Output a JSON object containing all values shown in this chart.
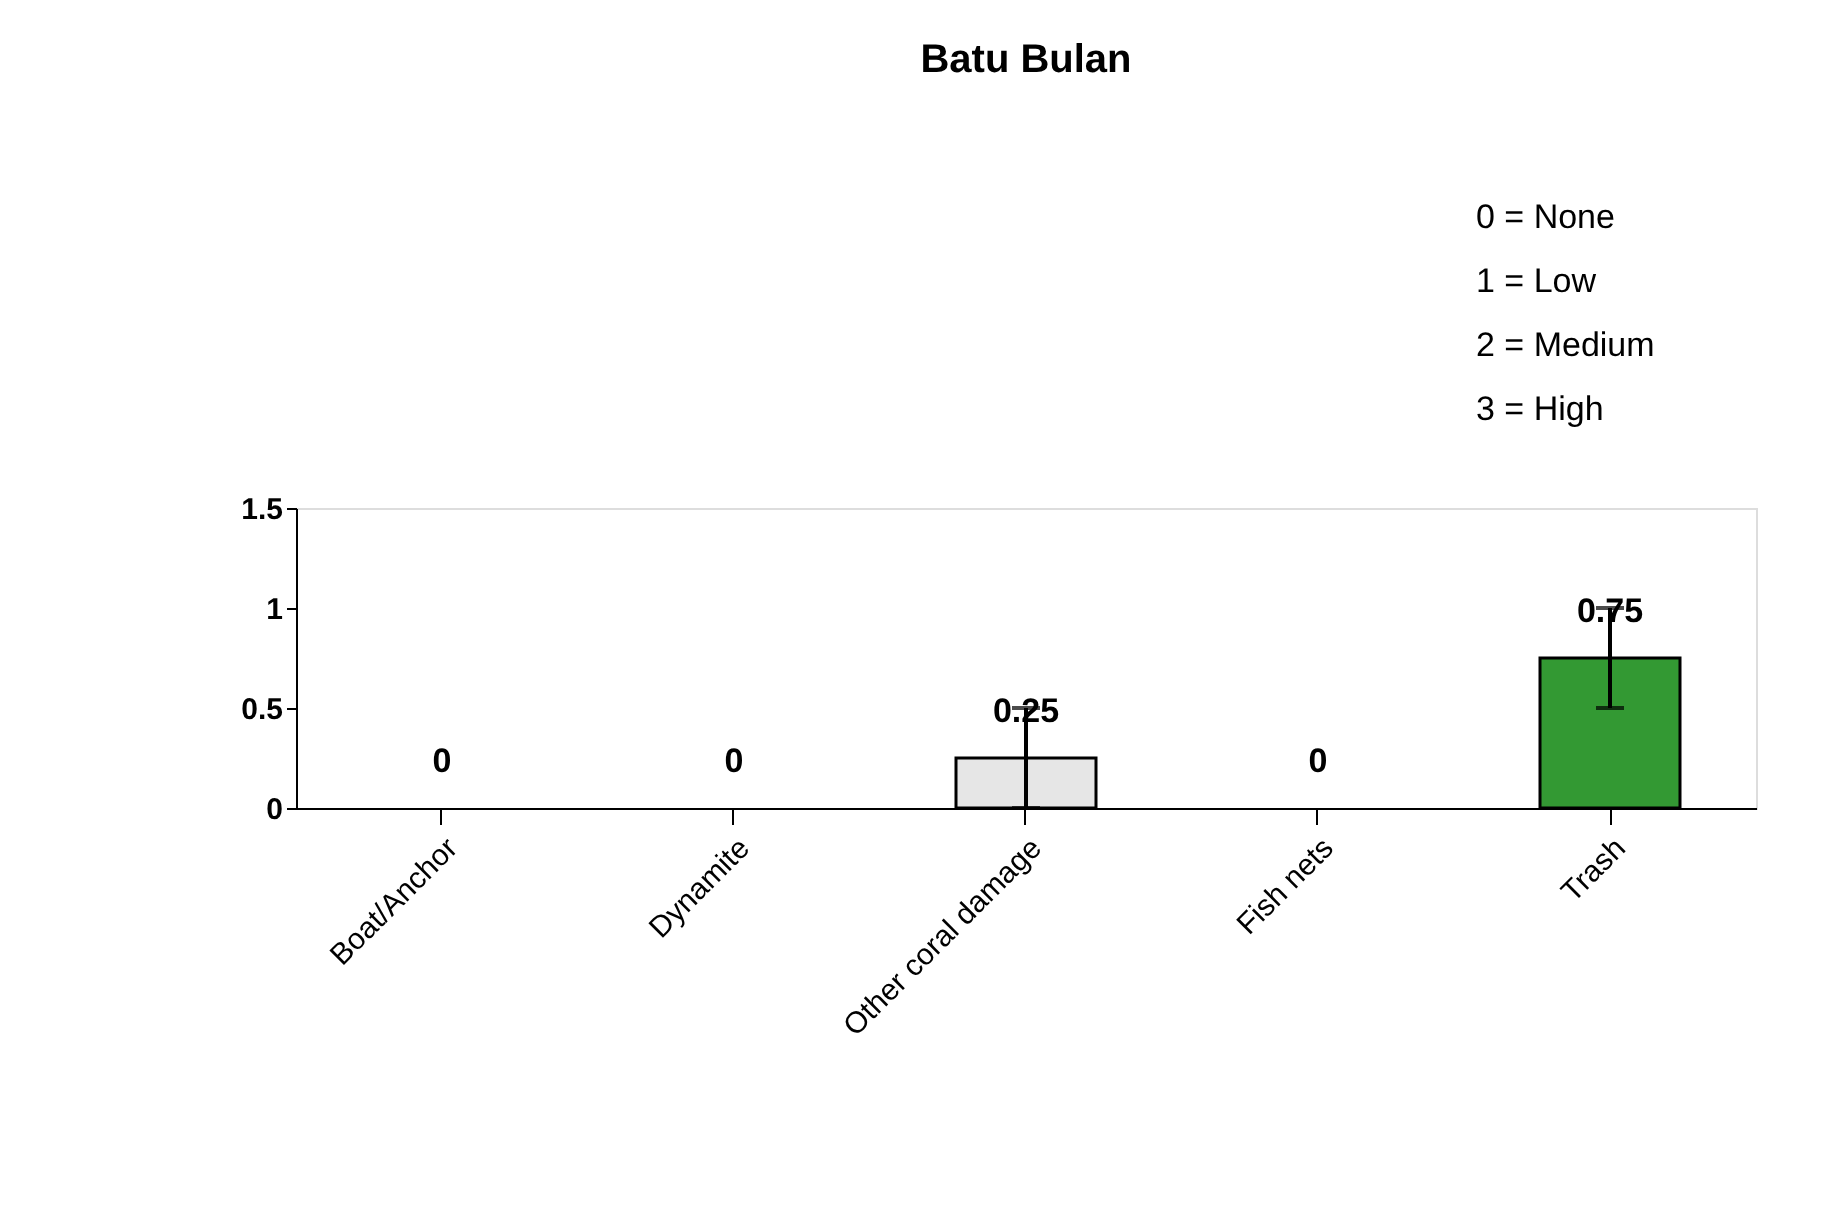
{
  "chart_data": {
    "type": "bar",
    "title": "Batu Bulan",
    "categories": [
      "Boat/Anchor",
      "Dynamite",
      "Other coral damage",
      "Fish nets",
      "Trash"
    ],
    "values": [
      0,
      0,
      0.25,
      0,
      0.75
    ],
    "colors": [
      "#e6e6e6",
      "#e6e6e6",
      "#e6e6e6",
      "#e6e6e6",
      "#339933"
    ],
    "errors": [
      null,
      null,
      0.25,
      null,
      0.25
    ],
    "data_labels": true,
    "ylim": [
      0,
      1.5
    ],
    "yticks": [
      0,
      0.5,
      1,
      1.5
    ],
    "grid": false,
    "annotations": [
      "0 = None",
      "1 = Low",
      "2 = Medium",
      "3 = High"
    ]
  }
}
